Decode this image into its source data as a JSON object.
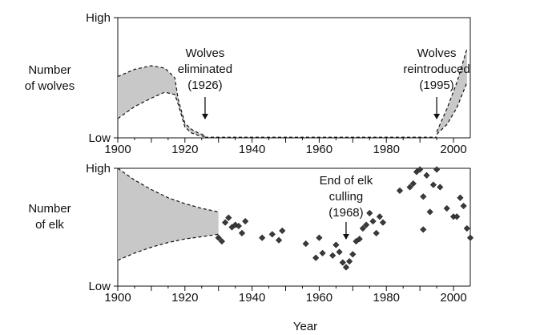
{
  "chart_data": [
    {
      "type": "area",
      "ylabel": [
        "Number",
        "of wolves"
      ],
      "xlim": [
        1900,
        2005
      ],
      "xticks": [
        1900,
        1920,
        1940,
        1960,
        1980,
        2000
      ],
      "ytick_labels": {
        "high": "High",
        "low": "Low"
      },
      "band": [
        {
          "x": 1900,
          "lo": 0.16,
          "hi": 0.51
        },
        {
          "x": 1905,
          "lo": 0.26,
          "hi": 0.57
        },
        {
          "x": 1910,
          "lo": 0.33,
          "hi": 0.6
        },
        {
          "x": 1914,
          "lo": 0.38,
          "hi": 0.58
        },
        {
          "x": 1917,
          "lo": 0.36,
          "hi": 0.5
        },
        {
          "x": 1918,
          "lo": 0.28,
          "hi": 0.32
        },
        {
          "x": 1920,
          "lo": 0.09,
          "hi": 0.12
        },
        {
          "x": 1922,
          "lo": 0.04,
          "hi": 0.07
        },
        {
          "x": 1924,
          "lo": 0.02,
          "hi": 0.04
        },
        {
          "x": 1926,
          "lo": 0.01,
          "hi": 0.02
        }
      ],
      "reintro_band": [
        {
          "x": 1995,
          "lo": 0.03,
          "hi": 0.05
        },
        {
          "x": 1998,
          "lo": 0.11,
          "hi": 0.24
        },
        {
          "x": 2001,
          "lo": 0.25,
          "hi": 0.46
        },
        {
          "x": 2004,
          "lo": 0.46,
          "hi": 0.74
        }
      ],
      "baseline": {
        "x_start": 1926,
        "x_end": 1995,
        "value": 0.005
      },
      "annotations": [
        {
          "lines": [
            "Wolves",
            "eliminated",
            "(1926)"
          ],
          "x": 1926
        },
        {
          "lines": [
            "Wolves",
            "reintroduced",
            "(1995)"
          ],
          "x": 1995
        }
      ]
    },
    {
      "type": "scatter",
      "ylabel": [
        "Number",
        "of elk"
      ],
      "xlabel": "Year",
      "xlim": [
        1900,
        2005
      ],
      "xticks": [
        1900,
        1920,
        1940,
        1960,
        1980,
        2000
      ],
      "ytick_labels": {
        "high": "High",
        "low": "Low"
      },
      "band": [
        {
          "x": 1900,
          "lo": 0.22,
          "hi": 1.0
        },
        {
          "x": 1905,
          "lo": 0.28,
          "hi": 0.9
        },
        {
          "x": 1910,
          "lo": 0.33,
          "hi": 0.82
        },
        {
          "x": 1915,
          "lo": 0.37,
          "hi": 0.75
        },
        {
          "x": 1920,
          "lo": 0.4,
          "hi": 0.7
        },
        {
          "x": 1925,
          "lo": 0.42,
          "hi": 0.66
        },
        {
          "x": 1930,
          "lo": 0.44,
          "hi": 0.63
        }
      ],
      "points": [
        {
          "x": 1930,
          "y": 0.41
        },
        {
          "x": 1931,
          "y": 0.38
        },
        {
          "x": 1932,
          "y": 0.54
        },
        {
          "x": 1933,
          "y": 0.58
        },
        {
          "x": 1934,
          "y": 0.5
        },
        {
          "x": 1935,
          "y": 0.52
        },
        {
          "x": 1936,
          "y": 0.51
        },
        {
          "x": 1937,
          "y": 0.45
        },
        {
          "x": 1938,
          "y": 0.55
        },
        {
          "x": 1943,
          "y": 0.41
        },
        {
          "x": 1946,
          "y": 0.44
        },
        {
          "x": 1948,
          "y": 0.39
        },
        {
          "x": 1949,
          "y": 0.47
        },
        {
          "x": 1956,
          "y": 0.36
        },
        {
          "x": 1959,
          "y": 0.24
        },
        {
          "x": 1960,
          "y": 0.41
        },
        {
          "x": 1961,
          "y": 0.28
        },
        {
          "x": 1964,
          "y": 0.26
        },
        {
          "x": 1965,
          "y": 0.35
        },
        {
          "x": 1966,
          "y": 0.29
        },
        {
          "x": 1967,
          "y": 0.2
        },
        {
          "x": 1968,
          "y": 0.16
        },
        {
          "x": 1969,
          "y": 0.21
        },
        {
          "x": 1970,
          "y": 0.27
        },
        {
          "x": 1971,
          "y": 0.38
        },
        {
          "x": 1972,
          "y": 0.4
        },
        {
          "x": 1973,
          "y": 0.49
        },
        {
          "x": 1974,
          "y": 0.52
        },
        {
          "x": 1975,
          "y": 0.62
        },
        {
          "x": 1976,
          "y": 0.55
        },
        {
          "x": 1977,
          "y": 0.45
        },
        {
          "x": 1978,
          "y": 0.59
        },
        {
          "x": 1979,
          "y": 0.54
        },
        {
          "x": 1984,
          "y": 0.81
        },
        {
          "x": 1987,
          "y": 0.84
        },
        {
          "x": 1988,
          "y": 0.87
        },
        {
          "x": 1989,
          "y": 0.97
        },
        {
          "x": 1990,
          "y": 0.99
        },
        {
          "x": 1991,
          "y": 0.76
        },
        {
          "x": 1992,
          "y": 0.94
        },
        {
          "x": 1994,
          "y": 0.86
        },
        {
          "x": 1995,
          "y": 0.99
        },
        {
          "x": 1996,
          "y": 0.84
        },
        {
          "x": 1998,
          "y": 0.66
        },
        {
          "x": 1993,
          "y": 0.63
        },
        {
          "x": 2000,
          "y": 0.59
        },
        {
          "x": 2001,
          "y": 0.59
        },
        {
          "x": 2002,
          "y": 0.75
        },
        {
          "x": 2003,
          "y": 0.68
        },
        {
          "x": 2004,
          "y": 0.49
        },
        {
          "x": 2005,
          "y": 0.41
        },
        {
          "x": 1991,
          "y": 0.48
        }
      ],
      "annotations": [
        {
          "lines": [
            "End of elk",
            "culling",
            "(1968)"
          ],
          "x": 1968
        }
      ]
    }
  ]
}
